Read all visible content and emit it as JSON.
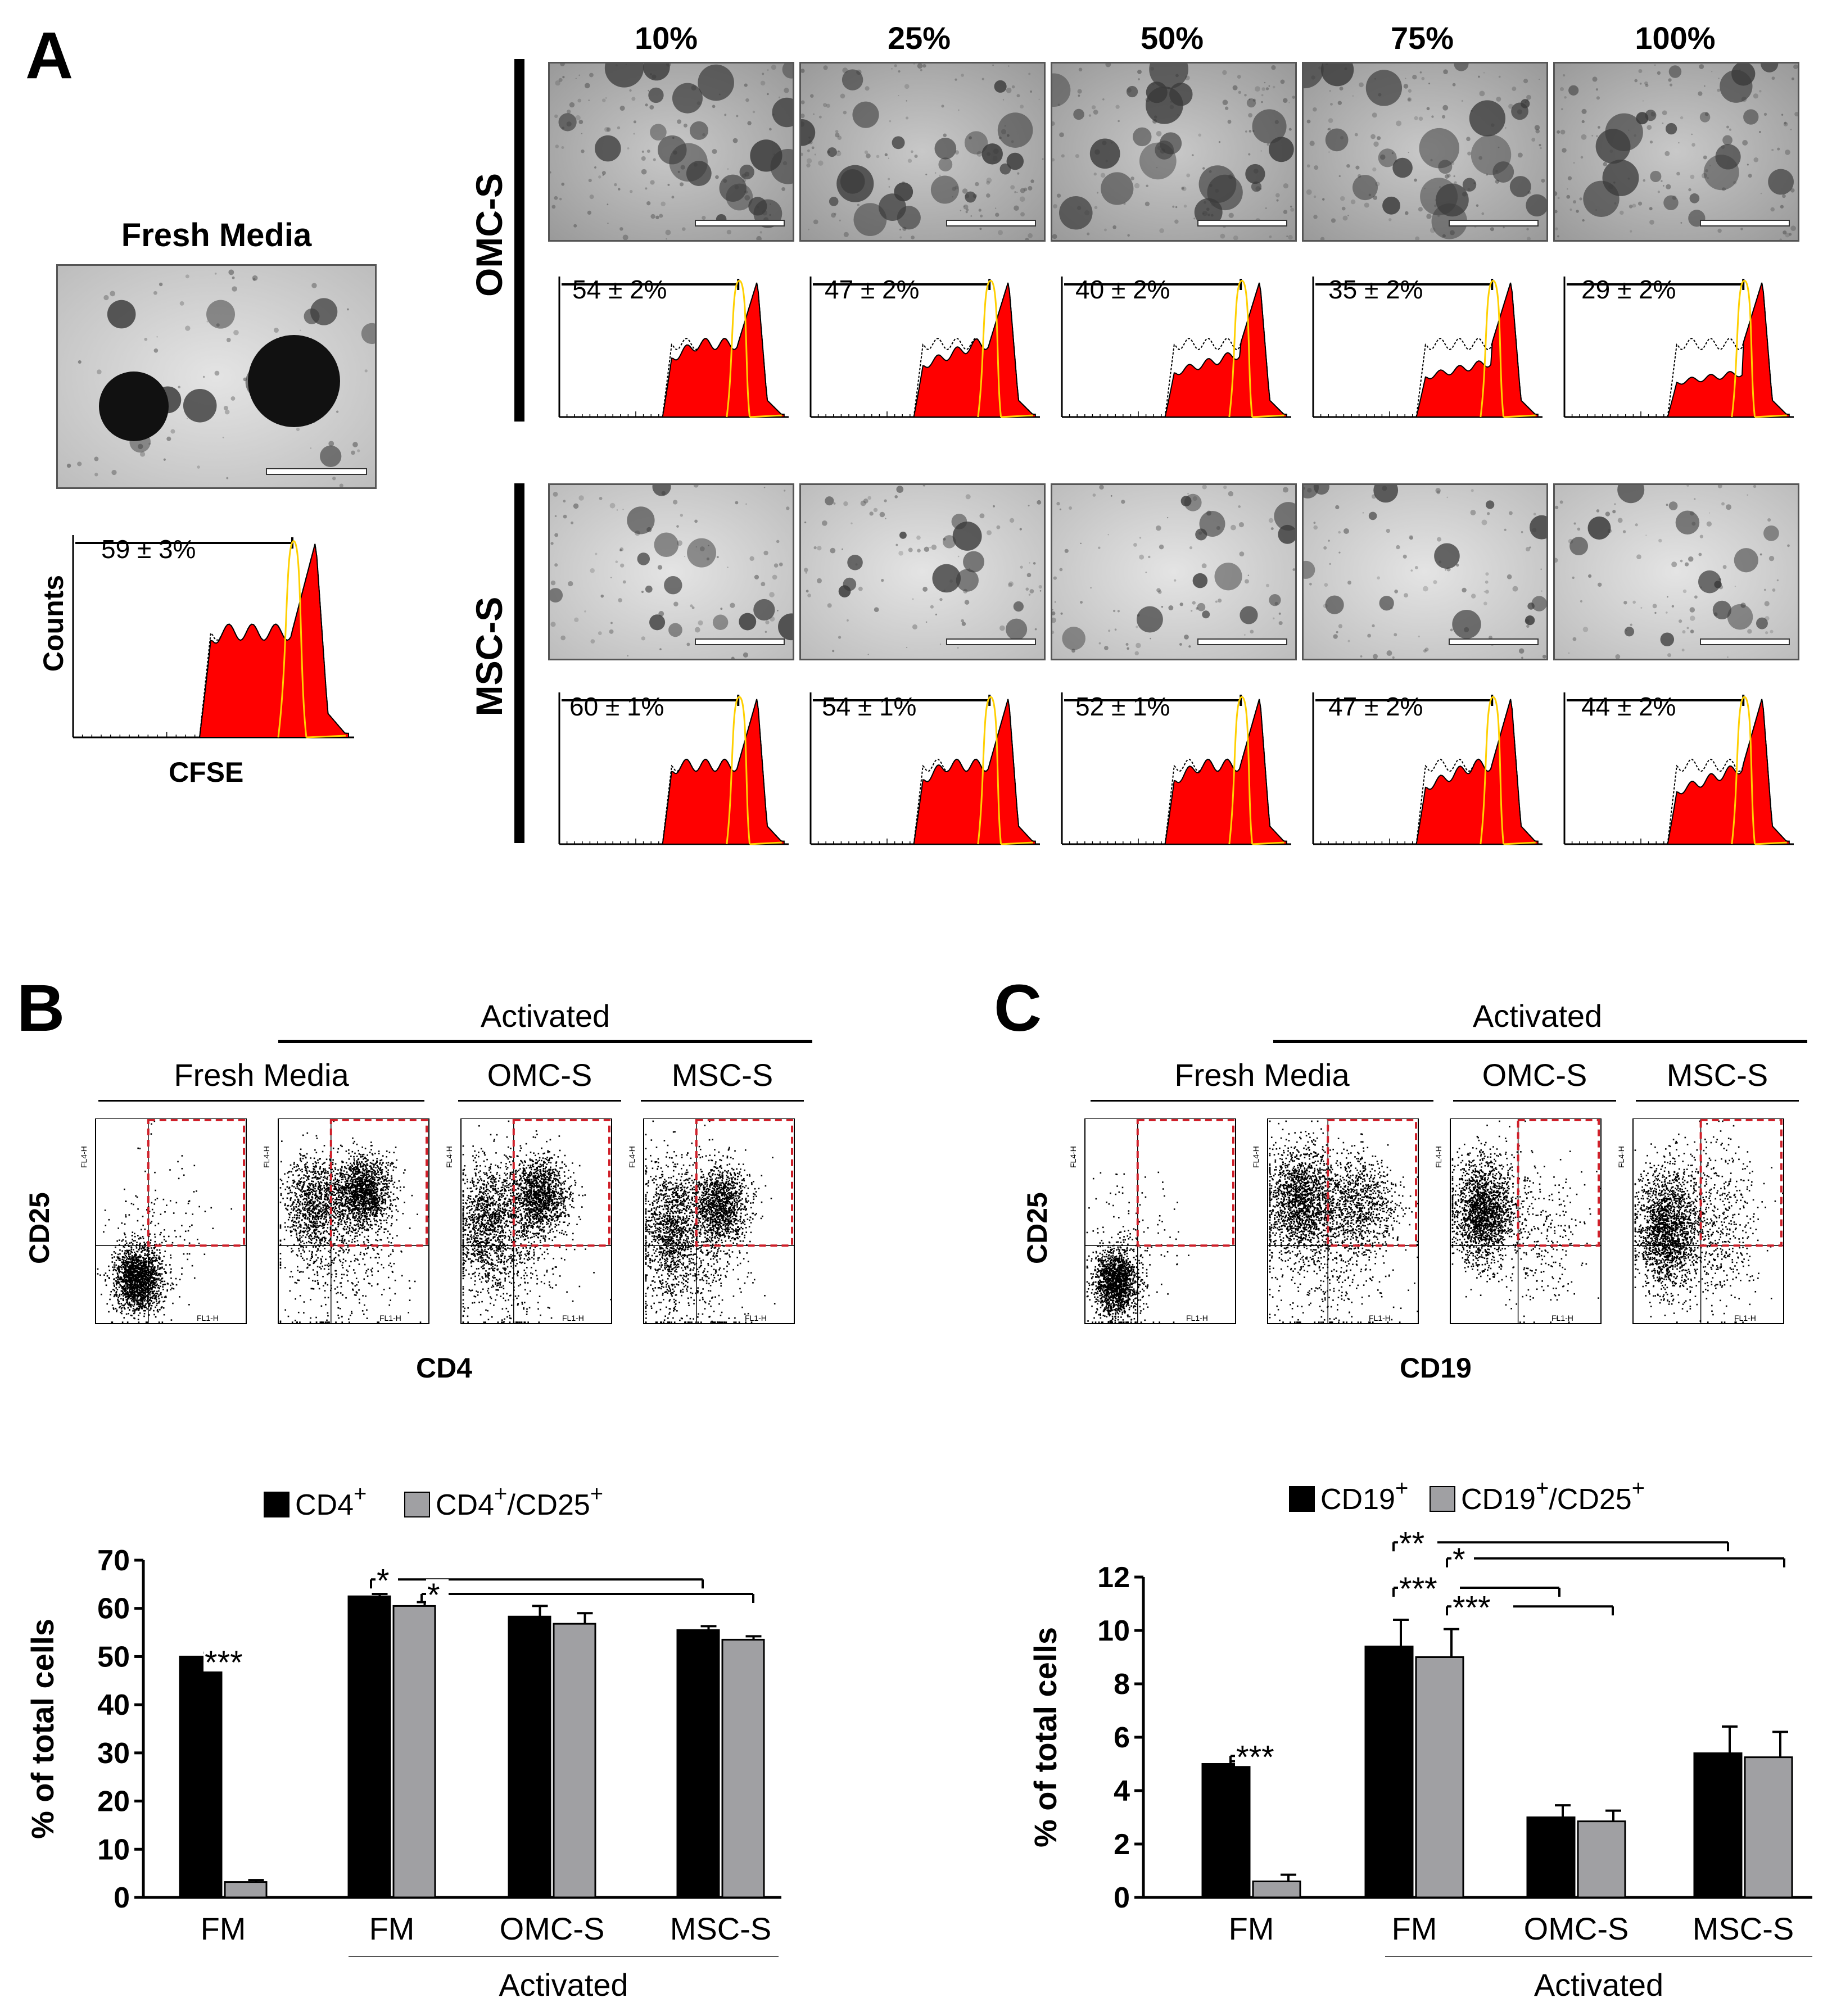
{
  "panel_labels": {
    "a": "A",
    "b": "B",
    "c": "C"
  },
  "panel_a": {
    "fresh_media_title": "Fresh Media",
    "fresh_media_value": "59 ± 3%",
    "y_axis": "Counts",
    "x_axis": "CFSE",
    "concentrations": [
      "10%",
      "25%",
      "50%",
      "75%",
      "100%"
    ],
    "rows": [
      {
        "label": "OMC-S",
        "values": [
          "54 ± 2%",
          "47 ± 2%",
          "40 ± 2%",
          "35 ± 2%",
          "29 ± 2%"
        ]
      },
      {
        "label": "MSC-S",
        "values": [
          "60 ± 1%",
          "54 ± 1%",
          "52 ± 1%",
          "47 ± 2%",
          "44 ± 2%"
        ]
      }
    ]
  },
  "panel_b": {
    "activated": "Activated",
    "groups": [
      "Fresh Media",
      "OMC-S",
      "MSC-S"
    ],
    "y_axis": "CD25",
    "x_axis": "CD4",
    "axis_small_x": "FL1-H",
    "axis_small_y": "FL4-H"
  },
  "panel_c": {
    "activated": "Activated",
    "groups": [
      "Fresh Media",
      "OMC-S",
      "MSC-S"
    ],
    "y_axis": "CD25",
    "x_axis": "CD19",
    "axis_small_x": "FL1-H",
    "axis_small_y": "FL4-H"
  },
  "chart_data": [
    {
      "type": "bar",
      "title": "",
      "ylabel": "% of total cells",
      "ylim": [
        0,
        70
      ],
      "yticks": [
        "0",
        "10",
        "20",
        "30",
        "40",
        "50",
        "60",
        "70"
      ],
      "categories": [
        "FM",
        "FM",
        "OMC-S",
        "MSC-S"
      ],
      "group_label": "Activated",
      "series": [
        {
          "name": "CD4+",
          "legend_main": "CD4",
          "legend_sup": "+",
          "color": "#000000",
          "values": [
            50,
            62.5,
            58.3,
            55.5
          ],
          "errors": [
            0.8,
            0.5,
            2.2,
            0.8
          ]
        },
        {
          "name": "CD4+/CD25+",
          "legend_main": "CD4",
          "legend_sup": "+",
          "legend_rest": "/CD25",
          "legend_sup2": "+",
          "color": "#a0a0a3",
          "values": [
            3.2,
            60.5,
            56.8,
            53.5
          ],
          "errors": [
            0.4,
            0.8,
            2.2,
            0.7
          ]
        }
      ],
      "significance": [
        "***",
        "*",
        "*"
      ]
    },
    {
      "type": "bar",
      "title": "",
      "ylabel": "% of total cells",
      "ylim": [
        0,
        12
      ],
      "yticks": [
        "0",
        "2",
        "4",
        "6",
        "8",
        "10",
        "12"
      ],
      "categories": [
        "FM",
        "FM",
        "OMC-S",
        "MSC-S"
      ],
      "group_label": "Activated",
      "series": [
        {
          "name": "CD19+",
          "legend_main": "CD19",
          "legend_sup": "+",
          "color": "#000000",
          "values": [
            5.0,
            9.4,
            3.0,
            5.4
          ],
          "errors": [
            0.1,
            1.0,
            0.45,
            1.0
          ]
        },
        {
          "name": "CD19+/CD25+",
          "legend_main": "CD19",
          "legend_sup": "+",
          "legend_rest": "/CD25",
          "legend_sup2": "+",
          "color": "#a0a0a3",
          "values": [
            0.6,
            9.0,
            2.85,
            5.25
          ],
          "errors": [
            0.25,
            1.05,
            0.4,
            0.95
          ]
        }
      ],
      "significance": [
        "***",
        "**",
        "*",
        "***",
        "***"
      ]
    }
  ],
  "colors": {
    "histogram_fill": "#ff0000",
    "histogram_outline": "#ffd000",
    "gate": "#d0202a",
    "bar_dark": "#000000",
    "bar_light": "#a0a0a3"
  }
}
